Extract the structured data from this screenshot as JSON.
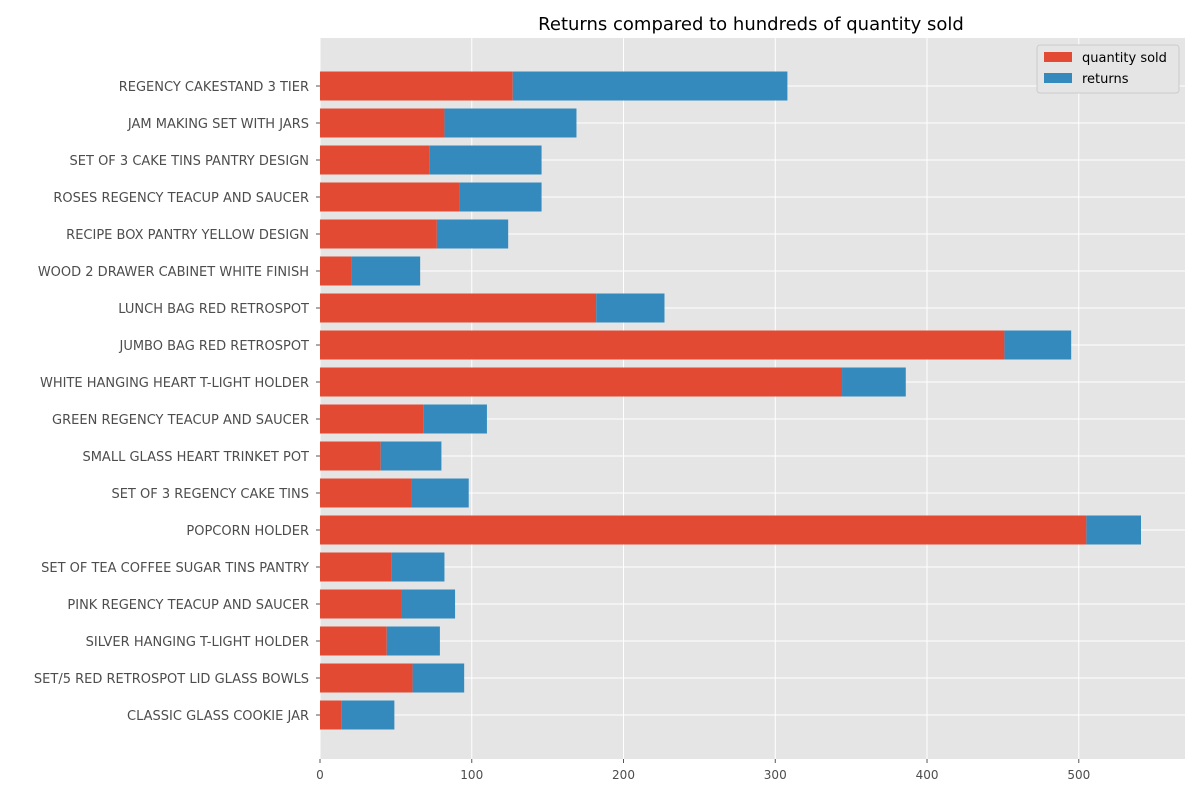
{
  "chart_data": {
    "type": "bar",
    "orientation": "horizontal",
    "stacked": true,
    "title": "Returns compared to hundreds of quantity sold",
    "xlabel": "",
    "ylabel": "",
    "xlim": [
      0,
      570
    ],
    "xticks": [
      0,
      100,
      200,
      300,
      400,
      500
    ],
    "grid": true,
    "legend_position": "top-right",
    "categories": [
      "REGENCY CAKESTAND 3 TIER",
      "JAM MAKING SET WITH JARS",
      "SET OF 3 CAKE TINS PANTRY DESIGN ",
      "ROSES REGENCY TEACUP AND SAUCER ",
      "RECIPE BOX PANTRY YELLOW DESIGN",
      "WOOD 2 DRAWER CABINET WHITE FINISH",
      "LUNCH BAG RED RETROSPOT",
      "JUMBO BAG RED RETROSPOT",
      "WHITE HANGING HEART T-LIGHT HOLDER",
      "GREEN REGENCY TEACUP AND SAUCER",
      "SMALL GLASS HEART TRINKET POT",
      "SET OF 3 REGENCY CAKE TINS",
      "POPCORN HOLDER",
      "SET OF TEA COFFEE SUGAR TINS PANTRY",
      "PINK REGENCY TEACUP AND SAUCER",
      "SILVER HANGING T-LIGHT HOLDER",
      "SET/5 RED RETROSPOT LID GLASS BOWLS",
      "CLASSIC GLASS COOKIE JAR"
    ],
    "series": [
      {
        "name": "quantity sold",
        "color": "#E24A33",
        "values": [
          127,
          82,
          72,
          92,
          77,
          21,
          182,
          451,
          344,
          68,
          40,
          60,
          505,
          47,
          54,
          44,
          61,
          14
        ]
      },
      {
        "name": "returns",
        "color": "#348ABD",
        "values": [
          181,
          87,
          74,
          54,
          47,
          45,
          45,
          44,
          42,
          42,
          40,
          38,
          36,
          35,
          35,
          35,
          34,
          35
        ]
      }
    ]
  },
  "colors": {
    "plot_background": "#E5E5E5",
    "grid": "#FFFFFF",
    "tick_text": "#4D4D4D"
  }
}
